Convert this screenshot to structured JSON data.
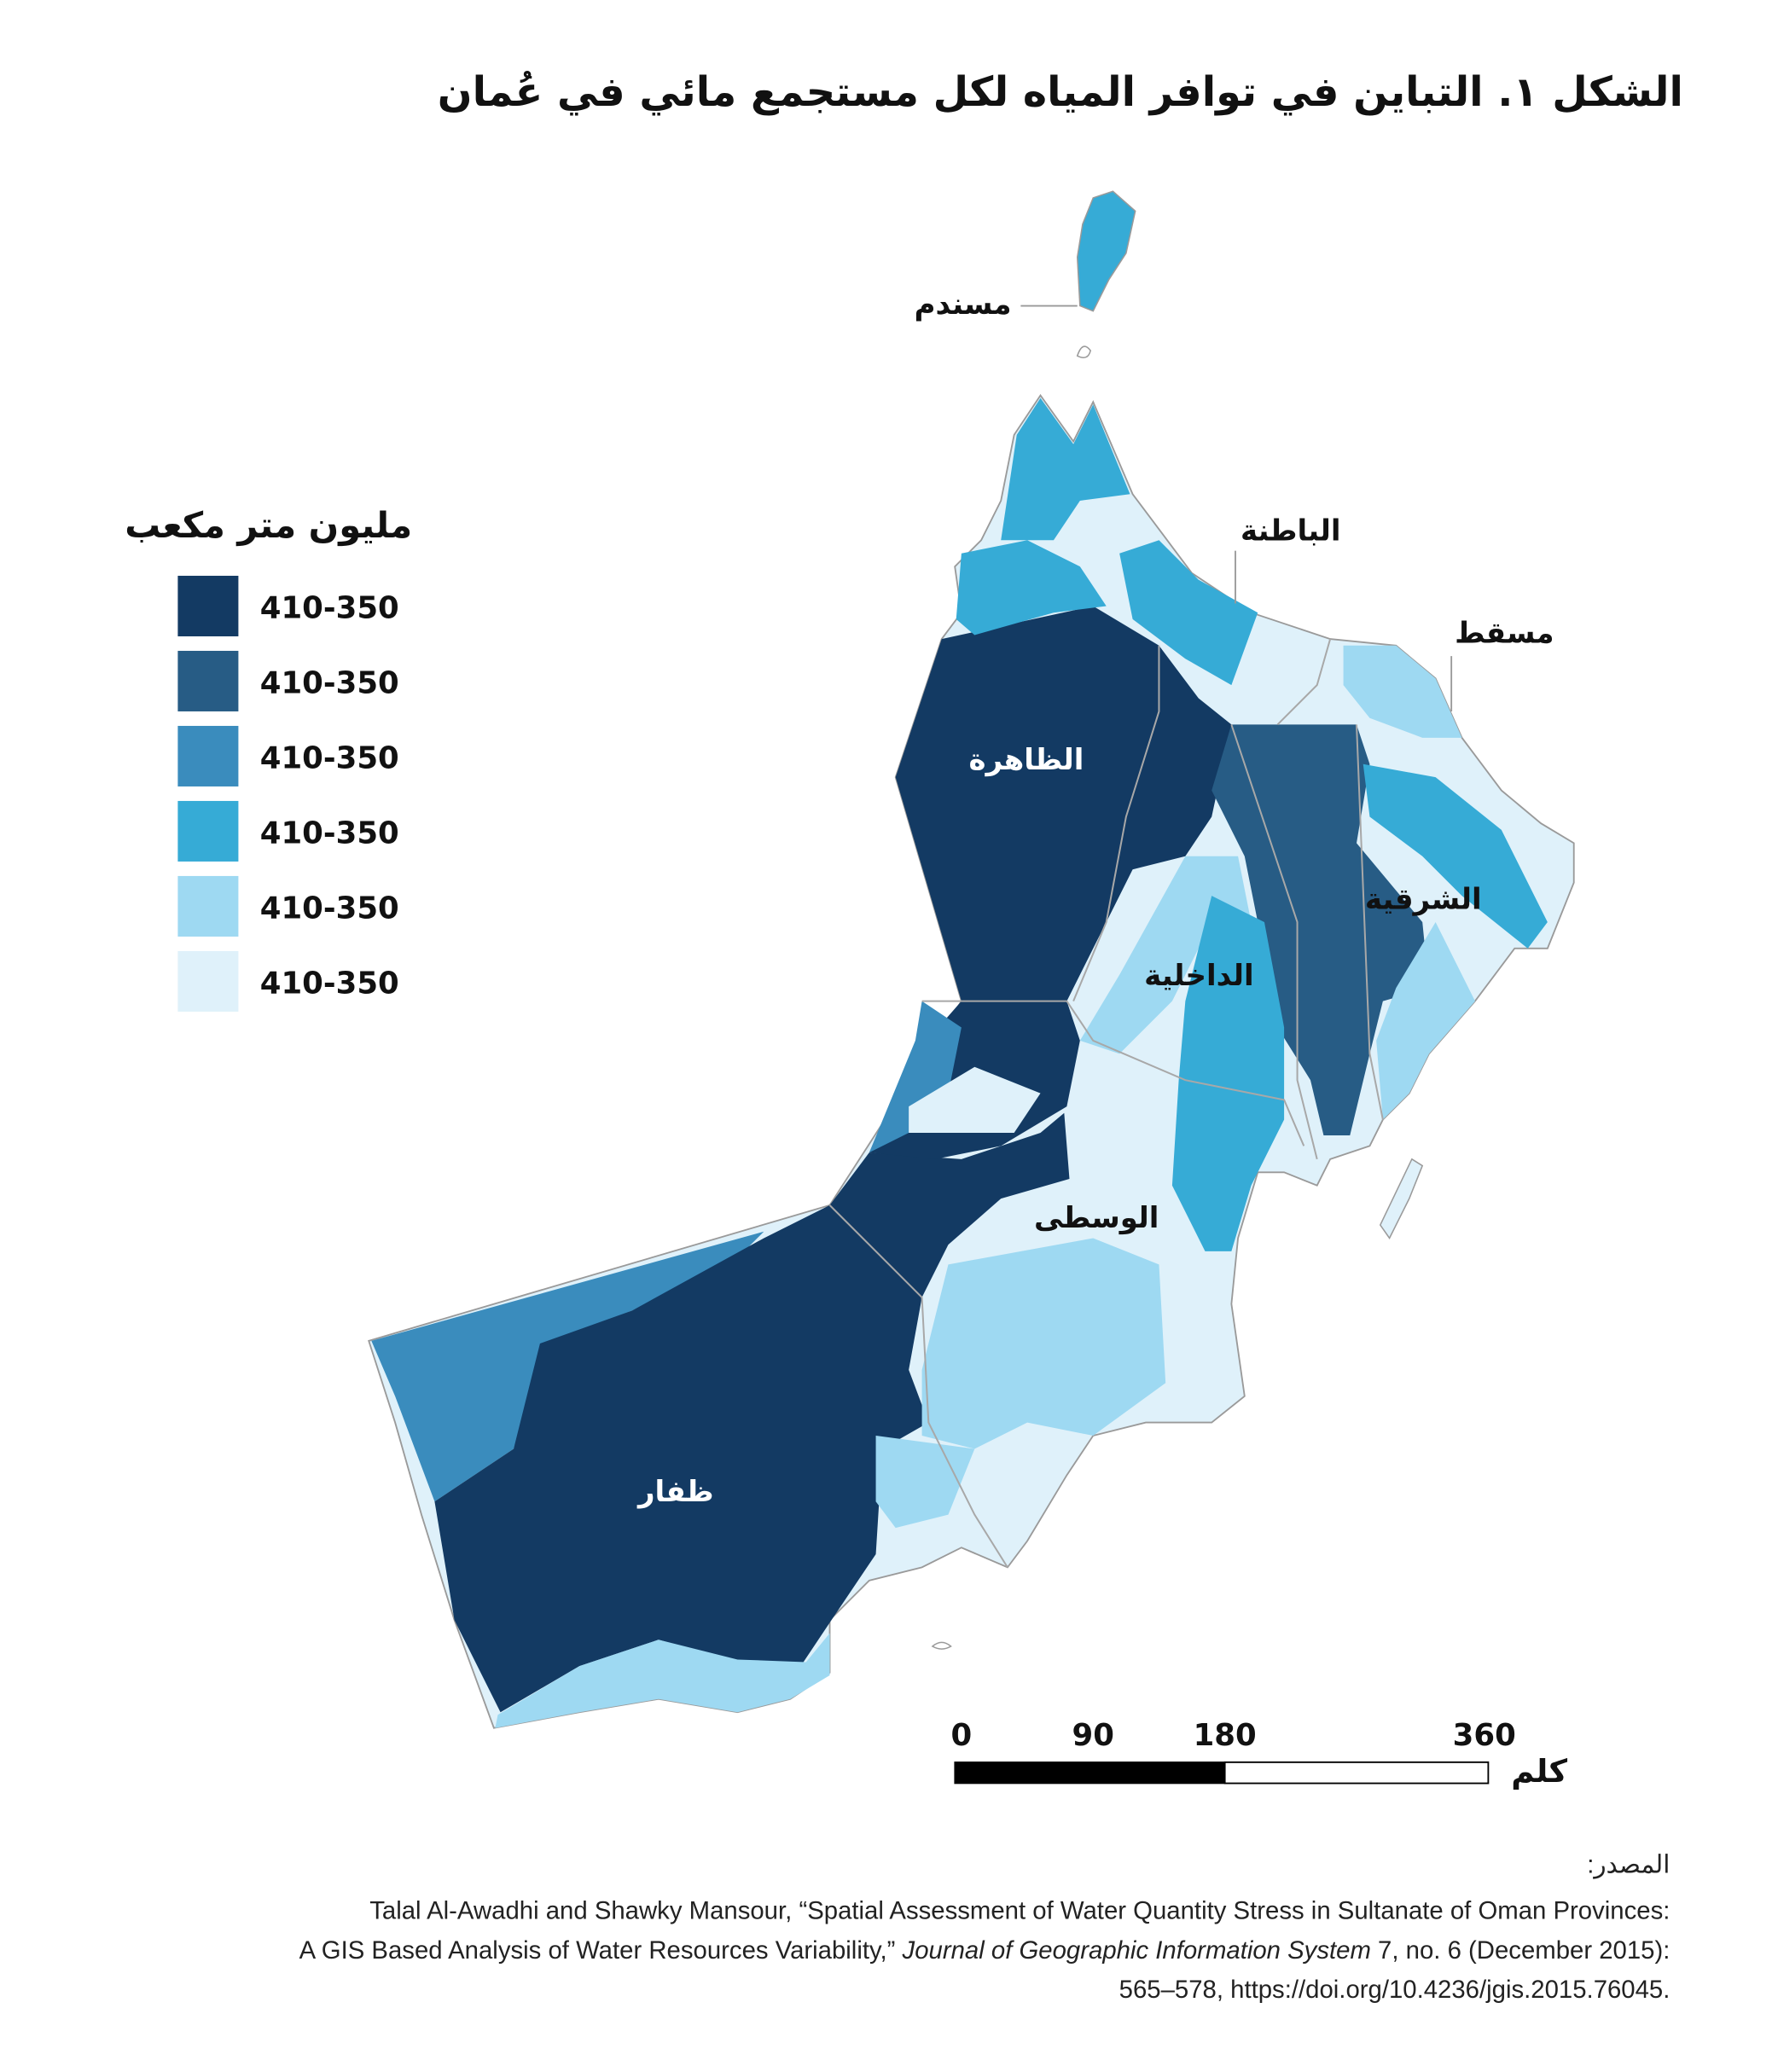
{
  "title": "الشكل ١. التباين في توافر المياه لكل مستجمع مائي في عُمان",
  "legend": {
    "title": "مليون متر مكعب",
    "items": [
      {
        "label": "410-350",
        "color": "#133a63"
      },
      {
        "label": "410-350",
        "color": "#275c85"
      },
      {
        "label": "410-350",
        "color": "#3a8cbd"
      },
      {
        "label": "410-350",
        "color": "#36abd6"
      },
      {
        "label": "410-350",
        "color": "#9ed9f2"
      },
      {
        "label": "410-350",
        "color": "#dff1fa"
      }
    ]
  },
  "regions": [
    {
      "label": "مسندم"
    },
    {
      "label": "الباطنة"
    },
    {
      "label": "مسقط"
    },
    {
      "label": "الظاهرة"
    },
    {
      "label": "الشرقية"
    },
    {
      "label": "الداخلية"
    },
    {
      "label": "الوسطى"
    },
    {
      "label": "ظفار"
    }
  ],
  "scale": {
    "ticks": [
      0,
      90,
      180,
      360
    ],
    "unit": "كلم"
  },
  "source": {
    "label": "المصدر:",
    "line1": "Talal Al-Awadhi and Shawky Mansour, “Spatial Assessment of Water Quantity Stress in Sultanate of Oman Provinces:",
    "line2a": "A GIS Based Analysis of Water Resources Variability,” ",
    "line2b": "Journal of Geographic Information System",
    "line2c": " 7, no. 6 (December 2015):",
    "line3": "565–578, https://doi.org/10.4236/jgis.2015.76045."
  }
}
